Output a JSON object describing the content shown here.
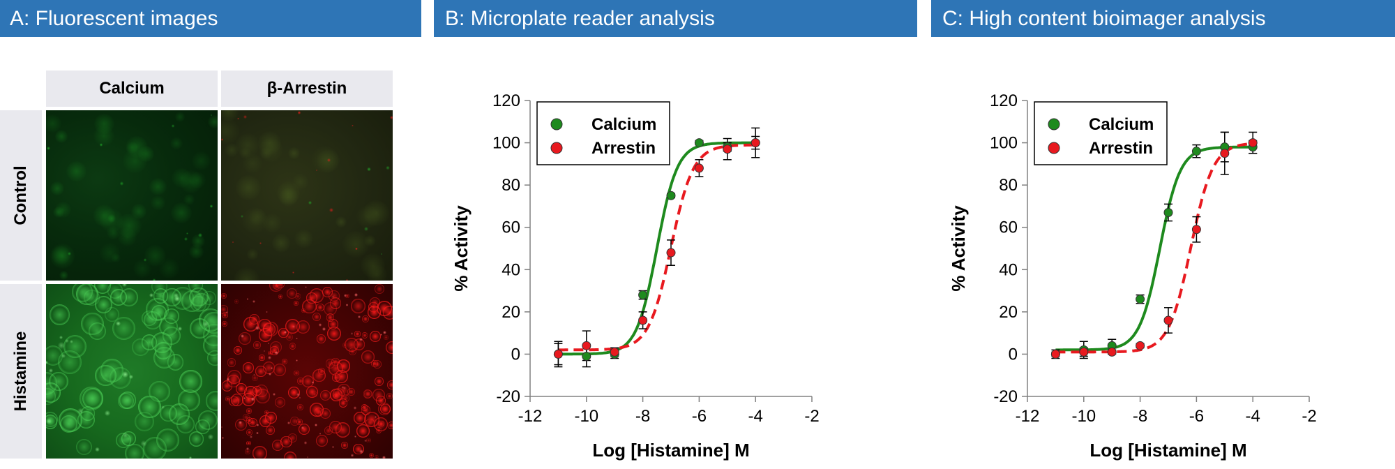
{
  "panels": {
    "a": {
      "title": "A: Fluorescent images",
      "columns": [
        "Calcium",
        "β-Arrestin"
      ],
      "rows": [
        "Control",
        "Histamine"
      ]
    },
    "b": {
      "title": "B: Microplate reader analysis"
    },
    "c": {
      "title": "C: High content bioimager analysis"
    }
  },
  "colors": {
    "header_bg": "#2e75b6",
    "calcium": "#1e8a1e",
    "arrestin": "#e8191f",
    "calcium_image": "#22b32a",
    "arrestin_image": "#ff1a1a"
  },
  "chart_data": [
    {
      "type": "scatter",
      "title": "B: Microplate reader analysis",
      "xlabel": "Log [Histamine] M",
      "ylabel": "% Activity",
      "xlim": [
        -12,
        -2
      ],
      "ylim": [
        -20,
        120
      ],
      "xticks": [
        -12,
        -10,
        -8,
        -6,
        -4,
        -2
      ],
      "yticks": [
        -20,
        0,
        20,
        40,
        60,
        80,
        100,
        120
      ],
      "grid": false,
      "legend_position": "top-left",
      "series": [
        {
          "name": "Calcium",
          "marker": "circle",
          "line": "solid",
          "x": [
            -11,
            -10,
            -9,
            -8,
            -7,
            -6,
            -5,
            -4
          ],
          "y": [
            0,
            -1,
            0,
            28,
            75,
            100,
            98,
            100
          ],
          "err": [
            6,
            5,
            2,
            2,
            1,
            1,
            2,
            7
          ],
          "fit": {
            "bottom": 0,
            "top": 100,
            "logEC50": -7.5,
            "hill": 1.2
          }
        },
        {
          "name": "Arrestin",
          "marker": "circle",
          "line": "dashed",
          "x": [
            -11,
            -10,
            -9,
            -8,
            -7,
            -6,
            -5,
            -4
          ],
          "y": [
            0,
            4,
            1,
            16,
            48,
            88,
            97,
            100
          ],
          "err": [
            5,
            7,
            2,
            4,
            6,
            4,
            5,
            3
          ],
          "fit": {
            "bottom": 2,
            "top": 99,
            "logEC50": -7.0,
            "hill": 1.1
          }
        }
      ]
    },
    {
      "type": "scatter",
      "title": "C: High content bioimager analysis",
      "xlabel": "Log [Histamine] M",
      "ylabel": "% Activity",
      "xlim": [
        -12,
        -2
      ],
      "ylim": [
        -20,
        120
      ],
      "xticks": [
        -12,
        -10,
        -8,
        -6,
        -4,
        -2
      ],
      "yticks": [
        -20,
        0,
        20,
        40,
        60,
        80,
        100,
        120
      ],
      "grid": false,
      "legend_position": "top-left",
      "series": [
        {
          "name": "Calcium",
          "marker": "circle",
          "line": "solid",
          "x": [
            -11,
            -10,
            -9,
            -8,
            -7,
            -6,
            -5,
            -4
          ],
          "y": [
            0,
            2,
            4,
            26,
            67,
            96,
            98,
            98
          ],
          "err": [
            2,
            4,
            3,
            2,
            4,
            3,
            7,
            3
          ],
          "fit": {
            "bottom": 2,
            "top": 98,
            "logEC50": -7.3,
            "hill": 1.2
          }
        },
        {
          "name": "Arrestin",
          "marker": "circle",
          "line": "dashed",
          "x": [
            -11,
            -10,
            -9,
            -8,
            -7,
            -6,
            -5,
            -4
          ],
          "y": [
            0,
            1,
            1,
            4,
            16,
            59,
            95,
            100
          ],
          "err": [
            1,
            2,
            1,
            1,
            6,
            6,
            10,
            5
          ],
          "fit": {
            "bottom": 1,
            "top": 100,
            "logEC50": -6.2,
            "hill": 1.1
          }
        }
      ]
    }
  ]
}
